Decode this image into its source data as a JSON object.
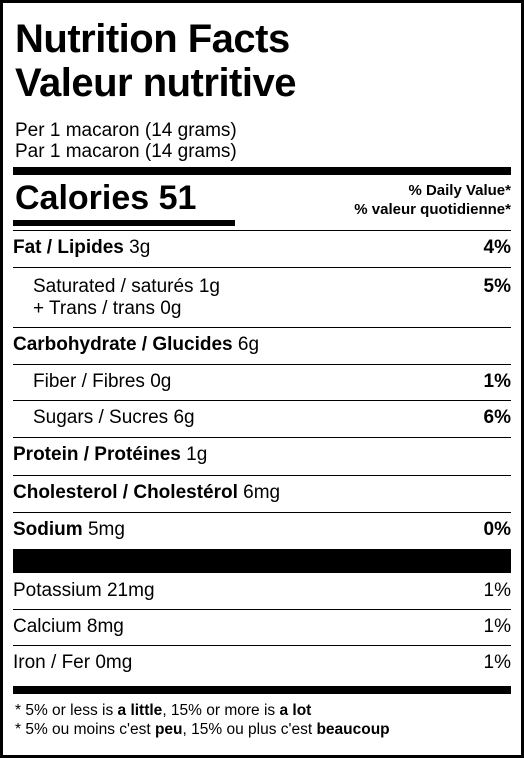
{
  "header": {
    "title_en": "Nutrition Facts",
    "title_fr": "Valeur nutritive",
    "serving_en": "Per 1 macaron (14 grams)",
    "serving_fr": "Par 1 macaron (14 grams)"
  },
  "calories": {
    "label": "Calories",
    "value": "51",
    "dv_en": "% Daily Value*",
    "dv_fr": "% valeur quotidienne*"
  },
  "nutrients": {
    "fat": {
      "name": "Fat / Lipides",
      "amount": "3g",
      "dv": "4%"
    },
    "saturated": {
      "name": "Saturated / saturés",
      "amount": "1g",
      "dv": "5%"
    },
    "trans": {
      "text": "+ Trans / trans 0g"
    },
    "carbohydrate": {
      "name": "Carbohydrate / Glucides",
      "amount": "6g"
    },
    "fiber": {
      "name": "Fiber / Fibres",
      "amount": "0g",
      "dv": "1%"
    },
    "sugars": {
      "name": "Sugars / Sucres",
      "amount": "6g",
      "dv": "6%"
    },
    "protein": {
      "name": "Protein / Protéines",
      "amount": "1g"
    },
    "cholesterol": {
      "name": "Cholesterol / Cholestérol",
      "amount": "6mg"
    },
    "sodium": {
      "name": "Sodium",
      "amount": "5mg",
      "dv": "0%"
    }
  },
  "minerals": {
    "potassium": {
      "name": "Potassium",
      "amount": "21mg",
      "dv": "1%"
    },
    "calcium": {
      "name": "Calcium",
      "amount": "8mg",
      "dv": "1%"
    },
    "iron": {
      "name": "Iron / Fer",
      "amount": "0mg",
      "dv": "1%"
    }
  },
  "footnote": {
    "en_prefix": "* 5% or less is ",
    "en_little": "a little",
    "en_mid": ", 15% or more is ",
    "en_lot": "a lot",
    "fr_prefix": "* 5% ou moins c'est ",
    "fr_peu": "peu",
    "fr_mid": ", 15% ou plus c'est ",
    "fr_beaucoup": "beaucoup"
  }
}
